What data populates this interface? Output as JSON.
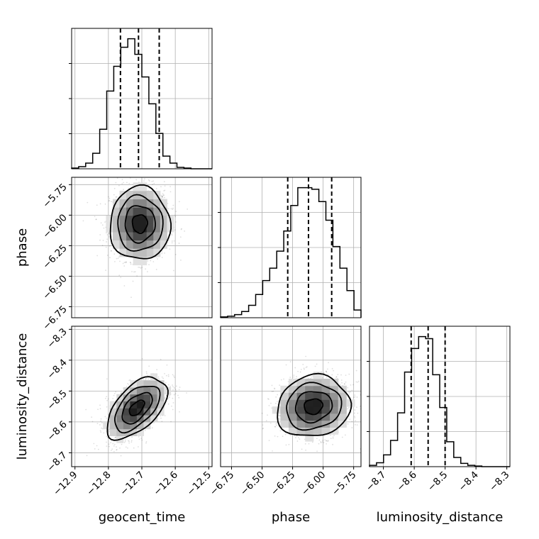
{
  "chart_data": {
    "type": "corner",
    "parameters": [
      "geocent_time",
      "phase",
      "luminosity_distance"
    ],
    "axes": {
      "geocent_time": {
        "label": "geocent_time",
        "range": [
          -12.91,
          -12.49
        ],
        "ticks": [
          -12.9,
          -12.8,
          -12.7,
          -12.6,
          -12.5
        ],
        "tick_labels": [
          "−12.9",
          "−12.8",
          "−12.7",
          "−12.6",
          "−12.5"
        ]
      },
      "phase": {
        "label": "phase",
        "range": [
          -6.84,
          -5.69
        ],
        "ticks": [
          -6.75,
          -6.5,
          -6.25,
          -6.0,
          -5.75
        ],
        "tick_labels": [
          "−6.75",
          "−6.50",
          "−6.25",
          "−6.00",
          "−5.75"
        ]
      },
      "luminosity_distance": {
        "label": "luminosity_distance",
        "range": [
          -8.745,
          -8.29
        ],
        "ticks": [
          -8.7,
          -8.6,
          -8.5,
          -8.4,
          -8.3
        ],
        "tick_labels": [
          "−8.7",
          "−8.6",
          "−8.5",
          "−8.4",
          "−8.3"
        ]
      }
    },
    "histograms": [
      {
        "parameter": "geocent_time",
        "bin_edges": [
          -12.91,
          -12.889,
          -12.868,
          -12.847,
          -12.826,
          -12.805,
          -12.784,
          -12.763,
          -12.742,
          -12.721,
          -12.7,
          -12.679,
          -12.658,
          -12.637,
          -12.616,
          -12.595,
          -12.574,
          -12.553,
          -12.532,
          -12.511,
          -12.49
        ],
        "counts": [
          1,
          3,
          8,
          22,
          56,
          110,
          145,
          172,
          184,
          162,
          130,
          92,
          50,
          18,
          8,
          2,
          1,
          0,
          0,
          0
        ],
        "quantiles": [
          -12.764,
          -12.71,
          -12.648
        ]
      },
      {
        "parameter": "phase",
        "bin_edges": [
          -6.84,
          -6.7825,
          -6.725,
          -6.6675,
          -6.61,
          -6.5525,
          -6.495,
          -6.4375,
          -6.38,
          -6.3225,
          -6.265,
          -6.2075,
          -6.15,
          -6.0925,
          -6.035,
          -5.9775,
          -5.92,
          -5.8625,
          -5.805,
          -5.7475,
          -5.69
        ],
        "counts": [
          1,
          2,
          4,
          8,
          16,
          30,
          48,
          64,
          86,
          112,
          145,
          168,
          168,
          166,
          150,
          126,
          92,
          64,
          35,
          10
        ],
        "quantiles": [
          -6.29,
          -6.12,
          -5.93
        ]
      },
      {
        "parameter": "luminosity_distance",
        "bin_edges": [
          -8.745,
          -8.72225,
          -8.6995,
          -8.67675,
          -8.654,
          -8.63125,
          -8.6085,
          -8.58575,
          -8.563,
          -8.54025,
          -8.5175,
          -8.49475,
          -8.472,
          -8.44925,
          -8.4265,
          -8.40375,
          -8.381,
          -8.35825,
          -8.3355,
          -8.31275,
          -8.29
        ],
        "counts": [
          2,
          6,
          18,
          40,
          82,
          144,
          180,
          198,
          195,
          140,
          90,
          38,
          14,
          5,
          2,
          1,
          0,
          0,
          0,
          0
        ],
        "quantiles": [
          -8.61,
          -8.555,
          -8.5
        ]
      }
    ],
    "pairs": [
      {
        "x": "geocent_time",
        "y": "phase",
        "center": [
          -12.706,
          -6.07
        ],
        "sigma": [
          0.045,
          0.15
        ],
        "correlation": 0.0
      },
      {
        "x": "geocent_time",
        "y": "luminosity_distance",
        "center": [
          -12.715,
          -8.555
        ],
        "sigma": [
          0.045,
          0.05
        ],
        "correlation": 0.55
      },
      {
        "x": "phase",
        "y": "luminosity_distance",
        "center": [
          -6.08,
          -8.55
        ],
        "sigma": [
          0.15,
          0.05
        ],
        "correlation": 0.1
      }
    ],
    "contour_levels_sigma": [
      0.5,
      1.0,
      1.5,
      2.0
    ],
    "grid": true,
    "legend": "none"
  }
}
